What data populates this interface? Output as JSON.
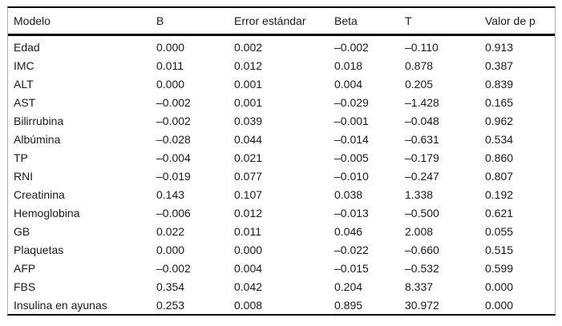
{
  "table": {
    "columns": [
      "Modelo",
      "B",
      "Error estándar",
      "Beta",
      "T",
      "Valor de p"
    ],
    "rows": [
      [
        "Edad",
        "0.000",
        "0.002",
        "–0.002",
        "–0.110",
        "0.913"
      ],
      [
        "IMC",
        "0.011",
        "0.012",
        "0.018",
        "0.878",
        "0.387"
      ],
      [
        "ALT",
        "0.000",
        "0.001",
        "0.004",
        "0.205",
        "0.839"
      ],
      [
        "AST",
        "–0.002",
        "0.001",
        "–0.029",
        "–1.428",
        "0.165"
      ],
      [
        "Bilirrubina",
        "–0.002",
        "0.039",
        "–0.001",
        "–0.048",
        "0.962"
      ],
      [
        "Albúmina",
        "–0.028",
        "0.044",
        "–0.014",
        "–0.631",
        "0.534"
      ],
      [
        "TP",
        "–0.004",
        "0.021",
        "–0.005",
        "–0.179",
        "0.860"
      ],
      [
        "RNI",
        "–0.019",
        "0.077",
        "–0.010",
        "–0.247",
        "0.807"
      ],
      [
        "Creatinina",
        "0.143",
        "0.107",
        "0.038",
        "1.338",
        "0.192"
      ],
      [
        "Hemoglobina",
        "–0.006",
        "0.012",
        "–0.013",
        "–0.500",
        "0.621"
      ],
      [
        "GB",
        "0.022",
        "0.011",
        "0.046",
        "2.008",
        "0.055"
      ],
      [
        "Plaquetas",
        "0.000",
        "0.000",
        "–0.022",
        "–0.660",
        "0.515"
      ],
      [
        "AFP",
        "–0.002",
        "0.004",
        "–0.015",
        "–0.532",
        "0.599"
      ],
      [
        "FBS",
        "0.354",
        "0.042",
        "0.204",
        "8.337",
        "0.000"
      ],
      [
        "Insulina en ayunas",
        "0.253",
        "0.008",
        "0.895",
        "30.972",
        "0.000"
      ]
    ],
    "colors": {
      "rule_dark": "#000000",
      "rule_light": "#ababab",
      "text": "#1a1a1a",
      "background": "#ffffff"
    }
  }
}
